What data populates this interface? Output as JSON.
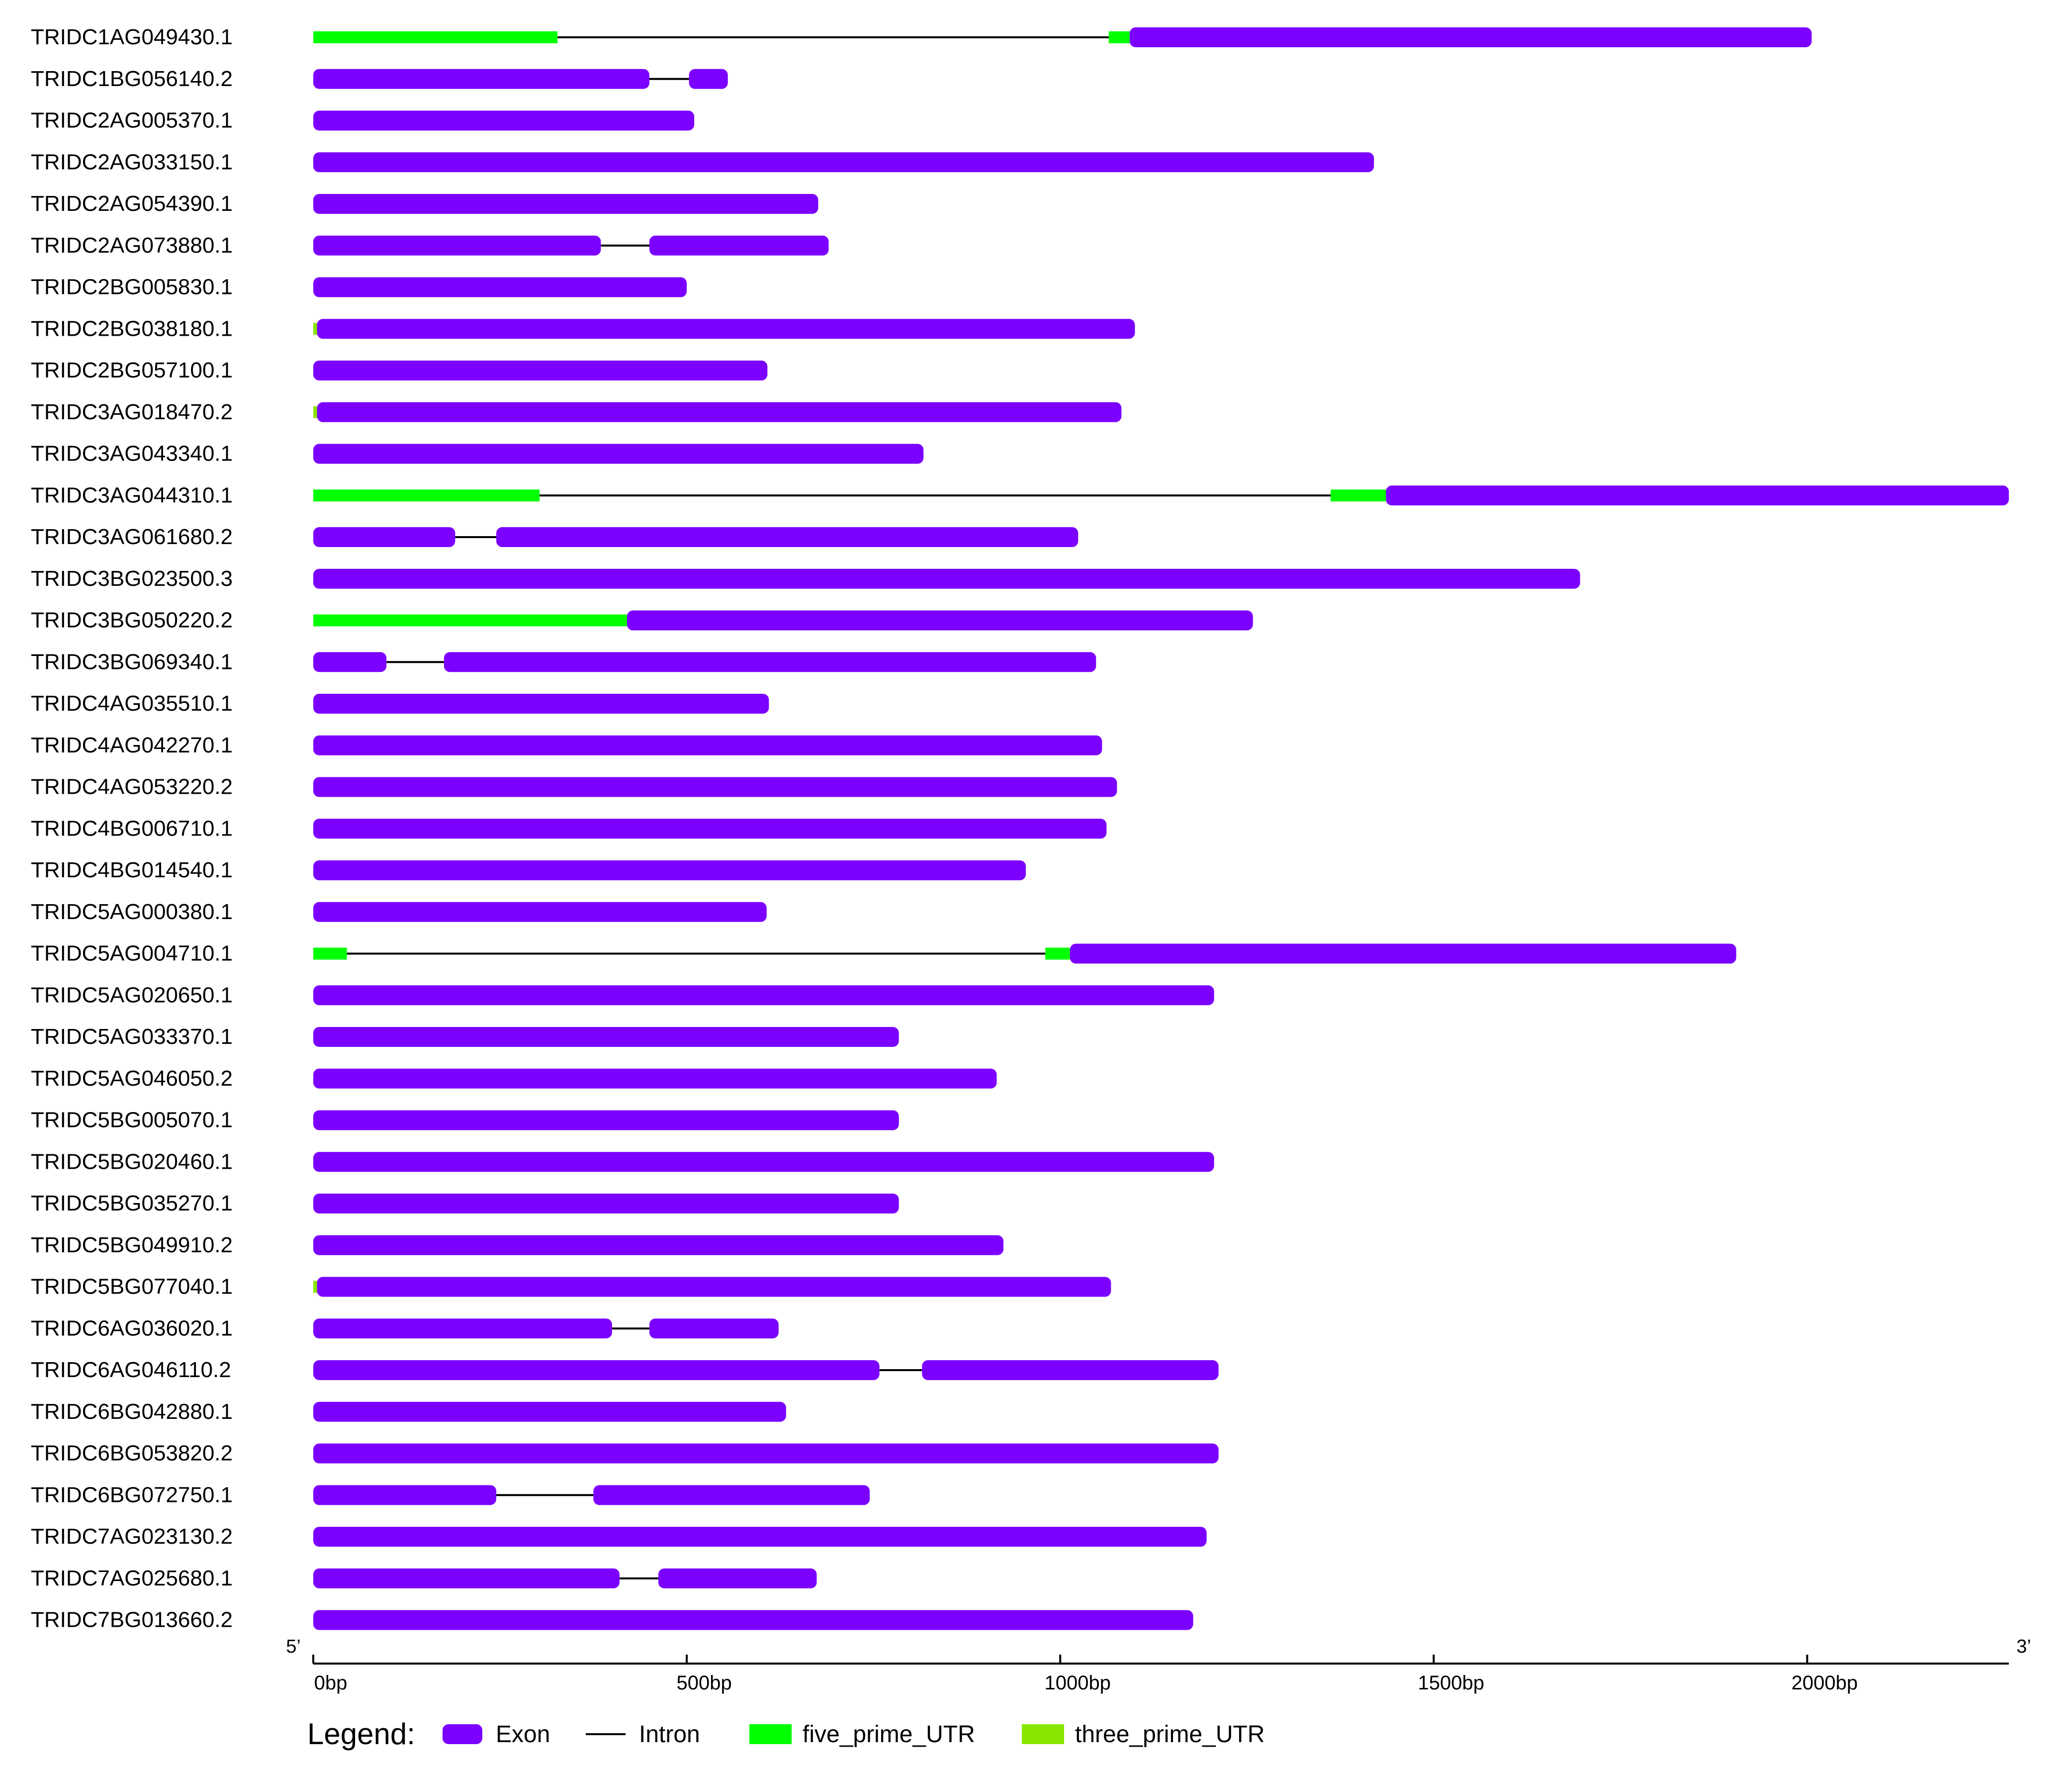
{
  "chart_data": {
    "type": "gene-structure",
    "colors": {
      "exon": "#7b00ff",
      "intron": "#000000",
      "five_prime_UTR": "#00ff00",
      "three_prime_UTR": "#88e600"
    },
    "axis": {
      "min": 0,
      "max": 2270,
      "ticks": [
        0,
        500,
        1000,
        1500,
        2000
      ],
      "tick_labels": [
        "0bp",
        "500bp",
        "1000bp",
        "1500bp",
        "2000bp"
      ],
      "left_end_label": "5’",
      "right_end_label": "3’"
    },
    "legend": {
      "title": "Legend:",
      "items": [
        {
          "key": "exon",
          "label": "Exon"
        },
        {
          "key": "intron",
          "label": "Intron"
        },
        {
          "key": "five_prime_UTR",
          "label": "five_prime_UTR"
        },
        {
          "key": "three_prime_UTR",
          "label": "three_prime_UTR"
        }
      ]
    },
    "genes": [
      {
        "name": "TRIDC1AG049430.1",
        "features": [
          {
            "type": "five_prime_UTR",
            "start": 0,
            "end": 327
          },
          {
            "type": "intron",
            "start": 327,
            "end": 1065
          },
          {
            "type": "five_prime_UTR",
            "start": 1065,
            "end": 1093
          },
          {
            "type": "exon",
            "start": 1093,
            "end": 2006
          }
        ]
      },
      {
        "name": "TRIDC1BG056140.2",
        "features": [
          {
            "type": "exon",
            "start": 0,
            "end": 450
          },
          {
            "type": "intron",
            "start": 450,
            "end": 503
          },
          {
            "type": "exon",
            "start": 503,
            "end": 555
          }
        ]
      },
      {
        "name": "TRIDC2AG005370.1",
        "features": [
          {
            "type": "exon",
            "start": 0,
            "end": 510
          }
        ]
      },
      {
        "name": "TRIDC2AG033150.1",
        "features": [
          {
            "type": "exon",
            "start": 0,
            "end": 1420
          }
        ]
      },
      {
        "name": "TRIDC2AG054390.1",
        "features": [
          {
            "type": "exon",
            "start": 0,
            "end": 676
          }
        ]
      },
      {
        "name": "TRIDC2AG073880.1",
        "features": [
          {
            "type": "exon",
            "start": 0,
            "end": 385
          },
          {
            "type": "intron",
            "start": 385,
            "end": 450
          },
          {
            "type": "exon",
            "start": 450,
            "end": 690
          }
        ]
      },
      {
        "name": "TRIDC2BG005830.1",
        "features": [
          {
            "type": "exon",
            "start": 0,
            "end": 500
          }
        ]
      },
      {
        "name": "TRIDC2BG038180.1",
        "features": [
          {
            "type": "three_prime_UTR",
            "start": 0,
            "end": 5
          },
          {
            "type": "exon",
            "start": 5,
            "end": 1100
          }
        ]
      },
      {
        "name": "TRIDC2BG057100.1",
        "features": [
          {
            "type": "exon",
            "start": 0,
            "end": 608
          }
        ]
      },
      {
        "name": "TRIDC3AG018470.2",
        "features": [
          {
            "type": "three_prime_UTR",
            "start": 0,
            "end": 5
          },
          {
            "type": "exon",
            "start": 5,
            "end": 1082
          }
        ]
      },
      {
        "name": "TRIDC3AG043340.1",
        "features": [
          {
            "type": "exon",
            "start": 0,
            "end": 817
          }
        ]
      },
      {
        "name": "TRIDC3AG044310.1",
        "features": [
          {
            "type": "five_prime_UTR",
            "start": 0,
            "end": 303
          },
          {
            "type": "intron",
            "start": 303,
            "end": 1362
          },
          {
            "type": "five_prime_UTR",
            "start": 1362,
            "end": 1436
          },
          {
            "type": "exon",
            "start": 1436,
            "end": 2270
          }
        ]
      },
      {
        "name": "TRIDC3AG061680.2",
        "features": [
          {
            "type": "exon",
            "start": 0,
            "end": 190
          },
          {
            "type": "intron",
            "start": 190,
            "end": 245
          },
          {
            "type": "exon",
            "start": 245,
            "end": 1024
          }
        ]
      },
      {
        "name": "TRIDC3BG023500.3",
        "features": [
          {
            "type": "exon",
            "start": 0,
            "end": 1696
          }
        ]
      },
      {
        "name": "TRIDC3BG050220.2",
        "features": [
          {
            "type": "five_prime_UTR",
            "start": 0,
            "end": 420
          },
          {
            "type": "exon",
            "start": 420,
            "end": 1258
          }
        ]
      },
      {
        "name": "TRIDC3BG069340.1",
        "features": [
          {
            "type": "exon",
            "start": 0,
            "end": 98
          },
          {
            "type": "intron",
            "start": 98,
            "end": 175
          },
          {
            "type": "exon",
            "start": 175,
            "end": 1048
          }
        ]
      },
      {
        "name": "TRIDC4AG035510.1",
        "features": [
          {
            "type": "exon",
            "start": 0,
            "end": 610
          }
        ]
      },
      {
        "name": "TRIDC4AG042270.1",
        "features": [
          {
            "type": "exon",
            "start": 0,
            "end": 1056
          }
        ]
      },
      {
        "name": "TRIDC4AG053220.2",
        "features": [
          {
            "type": "exon",
            "start": 0,
            "end": 1076
          }
        ]
      },
      {
        "name": "TRIDC4BG006710.1",
        "features": [
          {
            "type": "exon",
            "start": 0,
            "end": 1062
          }
        ]
      },
      {
        "name": "TRIDC4BG014540.1",
        "features": [
          {
            "type": "exon",
            "start": 0,
            "end": 954
          }
        ]
      },
      {
        "name": "TRIDC5AG000380.1",
        "features": [
          {
            "type": "exon",
            "start": 0,
            "end": 607
          }
        ]
      },
      {
        "name": "TRIDC5AG004710.1",
        "features": [
          {
            "type": "five_prime_UTR",
            "start": 0,
            "end": 45
          },
          {
            "type": "intron",
            "start": 45,
            "end": 980
          },
          {
            "type": "five_prime_UTR",
            "start": 980,
            "end": 1013
          },
          {
            "type": "exon",
            "start": 1013,
            "end": 1905
          }
        ]
      },
      {
        "name": "TRIDC5AG020650.1",
        "features": [
          {
            "type": "exon",
            "start": 0,
            "end": 1206
          }
        ]
      },
      {
        "name": "TRIDC5AG033370.1",
        "features": [
          {
            "type": "exon",
            "start": 0,
            "end": 784
          }
        ]
      },
      {
        "name": "TRIDC5AG046050.2",
        "features": [
          {
            "type": "exon",
            "start": 0,
            "end": 915
          }
        ]
      },
      {
        "name": "TRIDC5BG005070.1",
        "features": [
          {
            "type": "exon",
            "start": 0,
            "end": 784
          }
        ]
      },
      {
        "name": "TRIDC5BG020460.1",
        "features": [
          {
            "type": "exon",
            "start": 0,
            "end": 1206
          }
        ]
      },
      {
        "name": "TRIDC5BG035270.1",
        "features": [
          {
            "type": "exon",
            "start": 0,
            "end": 784
          }
        ]
      },
      {
        "name": "TRIDC5BG049910.2",
        "features": [
          {
            "type": "exon",
            "start": 0,
            "end": 924
          }
        ]
      },
      {
        "name": "TRIDC5BG077040.1",
        "features": [
          {
            "type": "three_prime_UTR",
            "start": 0,
            "end": 5
          },
          {
            "type": "exon",
            "start": 5,
            "end": 1068
          }
        ]
      },
      {
        "name": "TRIDC6AG036020.1",
        "features": [
          {
            "type": "exon",
            "start": 0,
            "end": 400
          },
          {
            "type": "intron",
            "start": 400,
            "end": 450
          },
          {
            "type": "exon",
            "start": 450,
            "end": 623
          }
        ]
      },
      {
        "name": "TRIDC6AG046110.2",
        "features": [
          {
            "type": "exon",
            "start": 0,
            "end": 758
          },
          {
            "type": "intron",
            "start": 758,
            "end": 815
          },
          {
            "type": "exon",
            "start": 815,
            "end": 1212
          }
        ]
      },
      {
        "name": "TRIDC6BG042880.1",
        "features": [
          {
            "type": "exon",
            "start": 0,
            "end": 633
          }
        ]
      },
      {
        "name": "TRIDC6BG053820.2",
        "features": [
          {
            "type": "exon",
            "start": 0,
            "end": 1212
          }
        ]
      },
      {
        "name": "TRIDC6BG072750.1",
        "features": [
          {
            "type": "exon",
            "start": 0,
            "end": 245
          },
          {
            "type": "intron",
            "start": 245,
            "end": 375
          },
          {
            "type": "exon",
            "start": 375,
            "end": 745
          }
        ]
      },
      {
        "name": "TRIDC7AG023130.2",
        "features": [
          {
            "type": "exon",
            "start": 0,
            "end": 1196
          }
        ]
      },
      {
        "name": "TRIDC7AG025680.1",
        "features": [
          {
            "type": "exon",
            "start": 0,
            "end": 410
          },
          {
            "type": "intron",
            "start": 410,
            "end": 462
          },
          {
            "type": "exon",
            "start": 462,
            "end": 674
          }
        ]
      },
      {
        "name": "TRIDC7BG013660.2",
        "features": [
          {
            "type": "exon",
            "start": 0,
            "end": 1178
          }
        ]
      }
    ]
  }
}
